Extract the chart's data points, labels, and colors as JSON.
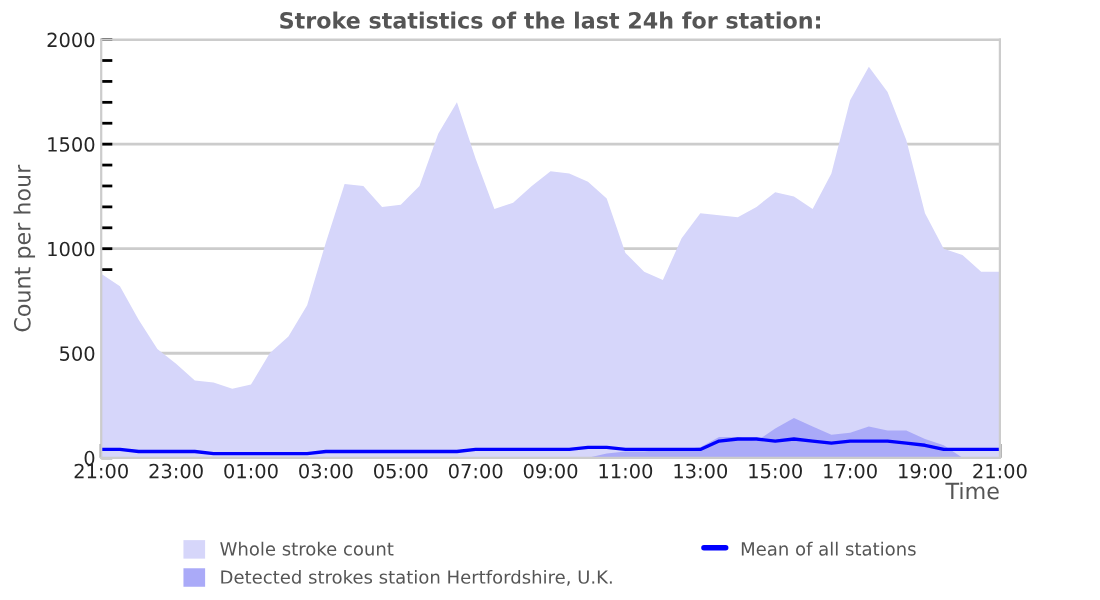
{
  "chart_data": {
    "type": "area",
    "title": "Stroke statistics of the last 24h for station:",
    "xlabel": "Time",
    "ylabel": "Count per hour",
    "categories": [
      "21:00",
      null,
      null,
      null,
      "23:00",
      null,
      null,
      null,
      "01:00",
      null,
      null,
      null,
      "03:00",
      null,
      null,
      null,
      "05:00",
      null,
      null,
      null,
      "07:00",
      null,
      null,
      null,
      "09:00",
      null,
      null,
      null,
      "11:00",
      null,
      null,
      null,
      "13:00",
      null,
      null,
      null,
      "15:00",
      null,
      null,
      null,
      "17:00",
      null,
      null,
      null,
      "19:00",
      null,
      null,
      null,
      "21:00"
    ],
    "ylim": [
      0,
      2000
    ],
    "yticks": [
      0,
      {
        "value": 100,
        "label": null
      },
      {
        "value": 200,
        "label": null
      },
      {
        "value": 300,
        "label": null
      },
      {
        "value": 400,
        "label": null
      },
      500,
      {
        "value": 600,
        "label": null
      },
      {
        "value": 700,
        "label": null
      },
      {
        "value": 800,
        "label": null
      },
      {
        "value": 900,
        "label": null
      },
      1000,
      {
        "value": 1100,
        "label": null
      },
      {
        "value": 1200,
        "label": null
      },
      {
        "value": 1300,
        "label": null
      },
      {
        "value": 1400,
        "label": null
      },
      1500,
      {
        "value": 1600,
        "label": null
      },
      {
        "value": 1700,
        "label": null
      },
      {
        "value": 1800,
        "label": null
      },
      {
        "value": 1900,
        "label": null
      },
      2000
    ],
    "grid": "y",
    "legend": "bottom",
    "series": [
      {
        "name": "Whole stroke count",
        "color": "#d6d6fa",
        "values": [
          880,
          820,
          660,
          520,
          450,
          370,
          360,
          330,
          350,
          500,
          580,
          730,
          1030,
          1310,
          1300,
          1200,
          1210,
          1300,
          1550,
          1700,
          1430,
          1190,
          1220,
          1300,
          1370,
          1360,
          1320,
          1240,
          980,
          890,
          850,
          1050,
          1170,
          1160,
          1150,
          1200,
          1270,
          1250,
          1190,
          1360,
          1710,
          1870,
          1750,
          1520,
          1170,
          1000,
          970,
          890,
          890
        ]
      },
      {
        "name": "Detected strokes station Hertfordshire, U.K.",
        "color": "#aaaaf8",
        "values": [
          0,
          0,
          0,
          0,
          0,
          0,
          0,
          0,
          0,
          0,
          0,
          0,
          0,
          0,
          0,
          0,
          0,
          0,
          0,
          0,
          0,
          0,
          0,
          0,
          0,
          0,
          0,
          20,
          30,
          30,
          40,
          40,
          50,
          100,
          100,
          80,
          140,
          190,
          150,
          110,
          120,
          150,
          130,
          130,
          90,
          60,
          0,
          0,
          0
        ]
      },
      {
        "name": "Mean of all stations",
        "type": "line",
        "color": "#0000ff",
        "values": [
          40,
          40,
          30,
          30,
          30,
          30,
          20,
          20,
          20,
          20,
          20,
          20,
          30,
          30,
          30,
          30,
          30,
          30,
          30,
          30,
          40,
          40,
          40,
          40,
          40,
          40,
          50,
          50,
          40,
          40,
          40,
          40,
          40,
          80,
          90,
          90,
          80,
          90,
          80,
          70,
          80,
          80,
          80,
          70,
          60,
          40,
          40,
          40,
          40
        ]
      }
    ]
  }
}
